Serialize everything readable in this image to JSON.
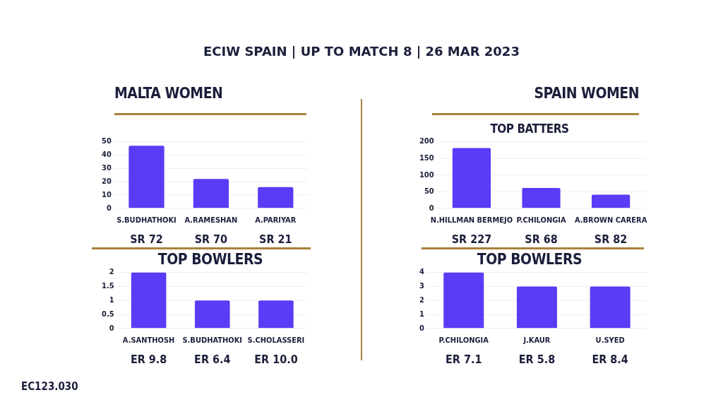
{
  "chart_data": [
    {
      "type": "bar",
      "title": "MALTA WOMEN",
      "categories": [
        "S.BUDHATHOKI",
        "A.RAMESHAN",
        "A.PARIYAR"
      ],
      "values": [
        47,
        22,
        16
      ],
      "color": "#5a3cf6",
      "ylim": [
        0,
        50
      ],
      "yticks": [
        0,
        10,
        20,
        30,
        40,
        50
      ],
      "grid": "y",
      "legend": false,
      "annotations": [
        "SR 72",
        "SR 70",
        "SR 21",
        "ECIW SPAIN | UP TO MATCH 8 | 26 MAR 2023",
        "EC123.030"
      ]
    },
    {
      "type": "bar",
      "title": "SPAIN WOMEN",
      "subtitle": "TOP BATTERS",
      "categories": [
        "N.HILLMAN BERMEJO",
        "P.CHILONGIA",
        "A.BROWN CARERA"
      ],
      "values": [
        181,
        61,
        41
      ],
      "color": "#5a3cf6",
      "ylim": [
        0,
        200
      ],
      "yticks": [
        0,
        50,
        100,
        150,
        200
      ],
      "grid": "y",
      "legend": false,
      "annotations": [
        "SR 227",
        "SR 68",
        "SR 82"
      ]
    },
    {
      "type": "bar",
      "title": "TOP BOWLERS",
      "categories": [
        "A.SANTHOSH",
        "S.BUDHATHOKI",
        "S.CHOLASSERI"
      ],
      "values": [
        2,
        1,
        1
      ],
      "color": "#5a3cf6",
      "ylim": [
        0,
        2
      ],
      "yticks": [
        0,
        0.5,
        1,
        1.5,
        2
      ],
      "grid": "y",
      "legend": false,
      "annotations": [
        "ER 9.8",
        "ER 6.4",
        "ER 10.0"
      ]
    },
    {
      "type": "bar",
      "title": "TOP BOWLERS",
      "categories": [
        "P.CHILONGIA",
        "J.KAUR",
        "U.SYED"
      ],
      "values": [
        4,
        3,
        3
      ],
      "color": "#5a3cf6",
      "ylim": [
        0,
        4
      ],
      "yticks": [
        0,
        1,
        2,
        3,
        4
      ],
      "grid": "y",
      "legend": false,
      "annotations": [
        "ER 7.1",
        "ER 5.8",
        "ER 8.4"
      ]
    }
  ]
}
